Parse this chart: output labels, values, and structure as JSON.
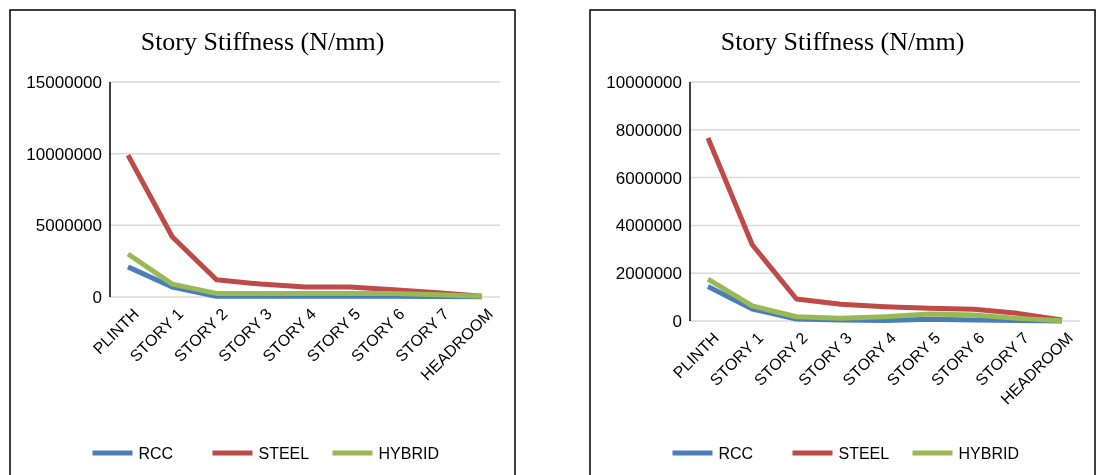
{
  "chart_data": [
    {
      "type": "line",
      "title": "Story Stiffness (N/mm)",
      "categories": [
        "PLINTH",
        "STORY 1",
        "STORY 2",
        "STORY 3",
        "STORY 4",
        "STORY 5",
        "STORY 6",
        "STORY 7",
        "HEADROOM"
      ],
      "series": [
        {
          "name": "RCC",
          "color": "#4a7ebb",
          "values": [
            2100000,
            700000,
            50000,
            50000,
            50000,
            50000,
            50000,
            30000,
            10000
          ]
        },
        {
          "name": "STEEL",
          "color": "#be4b48",
          "values": [
            9900000,
            4200000,
            1200000,
            900000,
            700000,
            700000,
            500000,
            300000,
            50000
          ]
        },
        {
          "name": "HYBRID",
          "color": "#98b954",
          "values": [
            3000000,
            900000,
            250000,
            250000,
            250000,
            250000,
            250000,
            150000,
            50000
          ]
        }
      ],
      "ylim": [
        0,
        15000000
      ],
      "yticks": [
        0,
        5000000,
        10000000,
        15000000
      ],
      "grid": "y",
      "legend": "bottom",
      "marker": "none"
    },
    {
      "type": "line",
      "title": "Story Stiffness (N/mm)",
      "categories": [
        "PLINTH",
        "STORY 1",
        "STORY 2",
        "STORY 3",
        "STORY 4",
        "STORY 5",
        "STORY 6",
        "STORY 7",
        "HEADROOM"
      ],
      "series": [
        {
          "name": "RCC",
          "color": "#4a7ebb",
          "values": [
            1440000,
            500000,
            80000,
            40000,
            20000,
            70000,
            40000,
            20000,
            0
          ]
        },
        {
          "name": "STEEL",
          "color": "#be4b48",
          "values": [
            7660000,
            3190000,
            920000,
            700000,
            600000,
            530000,
            490000,
            320000,
            40000
          ]
        },
        {
          "name": "HYBRID",
          "color": "#98b954",
          "values": [
            1750000,
            630000,
            180000,
            110000,
            180000,
            290000,
            250000,
            110000,
            10000
          ]
        }
      ],
      "ylim": [
        0,
        10000000
      ],
      "yticks": [
        0,
        2000000,
        4000000,
        6000000,
        8000000,
        10000000
      ],
      "grid": "y",
      "legend": "bottom",
      "marker": "none"
    }
  ]
}
